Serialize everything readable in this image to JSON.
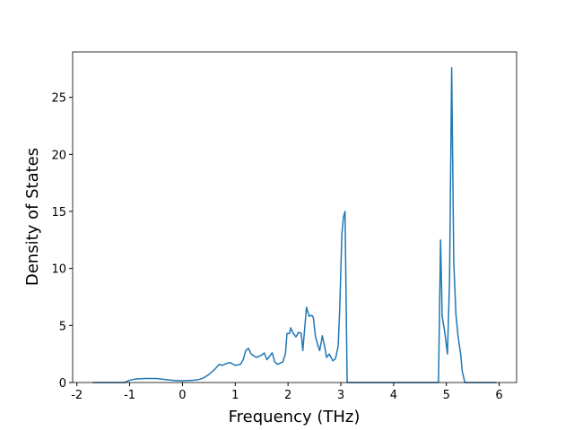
{
  "chart_data": {
    "type": "line",
    "x_label": "Frequency (THz)",
    "y_label": "Density of States",
    "x": [
      -1.7,
      -1.1,
      -1.0,
      -0.9,
      -0.7,
      -0.5,
      -0.4,
      -0.2,
      0,
      0.2,
      0.3,
      0.4,
      0.5,
      0.6,
      0.7,
      0.75,
      0.85,
      0.9,
      1.0,
      1.1,
      1.15,
      1.2,
      1.25,
      1.3,
      1.4,
      1.5,
      1.55,
      1.6,
      1.7,
      1.75,
      1.8,
      1.9,
      1.95,
      1.98,
      2.03,
      2.05,
      2.1,
      2.15,
      2.2,
      2.25,
      2.28,
      2.35,
      2.4,
      2.45,
      2.48,
      2.52,
      2.57,
      2.6,
      2.65,
      2.7,
      2.73,
      2.78,
      2.85,
      2.9,
      2.95,
      2.98,
      3.02,
      3.05,
      3.08,
      3.12,
      4.85,
      4.89,
      4.92,
      4.97,
      5.02,
      5.06,
      5.1,
      5.14,
      5.18,
      5.22,
      5.27,
      5.3,
      5.35,
      5.95
    ],
    "series": [
      {
        "color": "#1f77b4",
        "values": [
          0,
          0,
          0.2,
          0.3,
          0.35,
          0.35,
          0.3,
          0.2,
          0.15,
          0.2,
          0.25,
          0.4,
          0.7,
          1.1,
          1.6,
          1.5,
          1.7,
          1.75,
          1.5,
          1.6,
          2.0,
          2.8,
          3.0,
          2.5,
          2.2,
          2.4,
          2.6,
          2.0,
          2.6,
          1.8,
          1.6,
          1.8,
          2.5,
          4.3,
          4.3,
          4.8,
          4.3,
          4.0,
          4.4,
          4.3,
          2.8,
          6.6,
          5.8,
          5.9,
          5.7,
          4.0,
          3.2,
          2.8,
          4.1,
          3.0,
          2.2,
          2.5,
          1.9,
          2.1,
          3.2,
          6.5,
          13,
          14.5,
          15,
          0,
          0,
          12.5,
          5.8,
          4.4,
          2.5,
          9,
          27.6,
          10.5,
          6,
          4.1,
          2.5,
          1.0,
          0,
          0
        ]
      }
    ],
    "xlim": [
      -2.08,
      6.33
    ],
    "ylim": [
      0,
      28.98
    ],
    "xticks": [
      -2,
      -1,
      0,
      1,
      2,
      3,
      4,
      5,
      6
    ],
    "yticks": [
      0,
      5,
      10,
      15,
      20,
      25
    ]
  }
}
